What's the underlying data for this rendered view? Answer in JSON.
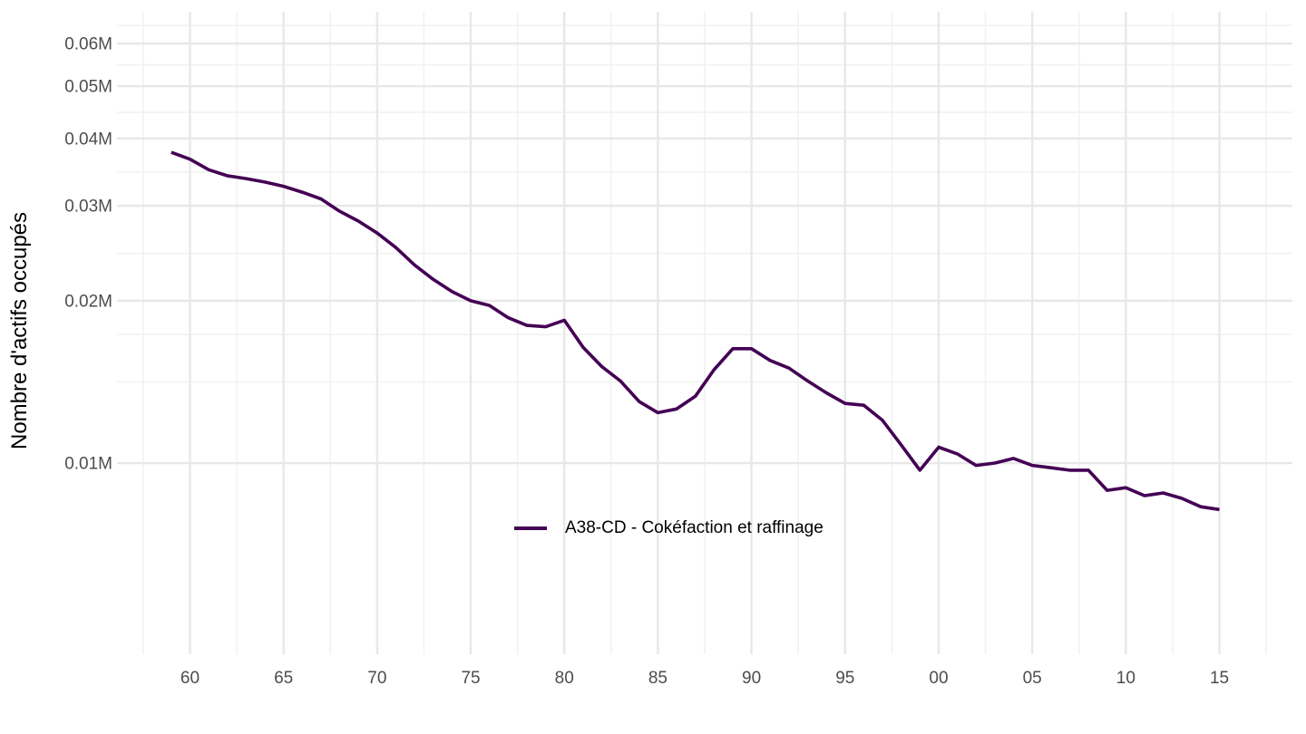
{
  "chart_data": {
    "type": "line",
    "title": "",
    "xlabel": "",
    "ylabel": "Nombre d'actifs occupés",
    "y_scale": "log10",
    "grid": true,
    "legend_position": "inside-bottom-center",
    "x_domain": [
      1956.1,
      2018.9
    ],
    "y_domain": [
      0.00442,
      0.0687
    ],
    "x": [
      1959,
      1960,
      1961,
      1962,
      1963,
      1964,
      1965,
      1966,
      1967,
      1968,
      1969,
      1970,
      1971,
      1972,
      1973,
      1974,
      1975,
      1976,
      1977,
      1978,
      1979,
      1980,
      1981,
      1982,
      1983,
      1984,
      1985,
      1986,
      1987,
      1988,
      1989,
      1990,
      1991,
      1992,
      1993,
      1994,
      1995,
      1996,
      1997,
      1998,
      1999,
      2000,
      2001,
      2002,
      2003,
      2004,
      2005,
      2006,
      2007,
      2008,
      2009,
      2010,
      2011,
      2012,
      2013,
      2014,
      2015
    ],
    "series": [
      {
        "name": "A38-CD - Cokéfaction et raffinage",
        "color": "#440154",
        "values": [
          0.0377,
          0.0366,
          0.035,
          0.0341,
          0.0337,
          0.0332,
          0.0326,
          0.0318,
          0.0309,
          0.0293,
          0.0281,
          0.0267,
          0.0251,
          0.0233,
          0.0219,
          0.0208,
          0.02,
          0.0196,
          0.0186,
          0.018,
          0.0179,
          0.0184,
          0.0164,
          0.0151,
          0.0142,
          0.013,
          0.0124,
          0.0126,
          0.0133,
          0.0149,
          0.0163,
          0.0163,
          0.0155,
          0.015,
          0.0142,
          0.0135,
          0.0129,
          0.0128,
          0.012,
          0.0108,
          0.0097,
          0.0107,
          0.0104,
          0.0099,
          0.01,
          0.0102,
          0.0099,
          0.0098,
          0.0097,
          0.0097,
          0.0089,
          0.009,
          0.0087,
          0.0088,
          0.0086,
          0.0083,
          0.0082
        ]
      }
    ],
    "x_ticks": {
      "major": [
        1960,
        1965,
        1970,
        1975,
        1980,
        1985,
        1990,
        1995,
        2000,
        2005,
        2010,
        2015
      ],
      "labels": [
        "60",
        "65",
        "70",
        "75",
        "80",
        "85",
        "90",
        "95",
        "00",
        "05",
        "10",
        "15"
      ],
      "minor": [
        1957.5,
        1962.5,
        1967.5,
        1972.5,
        1977.5,
        1982.5,
        1987.5,
        1992.5,
        1997.5,
        2002.5,
        2007.5,
        2012.5,
        2017.5
      ]
    },
    "y_ticks": {
      "major": [
        0.01,
        0.02,
        0.03,
        0.04,
        0.05,
        0.06
      ],
      "labels": [
        "0.01M",
        "0.02M",
        "0.03M",
        "0.04M",
        "0.05M",
        "0.06M"
      ],
      "minor": [
        0.01414,
        0.01732,
        0.02449,
        0.03464,
        0.04472,
        0.05477,
        0.06481
      ]
    },
    "colors": {
      "line": "#440154",
      "grid_major": "#E8E8E8",
      "grid_minor": "#F2F2F2",
      "tick_label": "#4D4D4D",
      "axis_title": "#000000",
      "legend_text": "#000000",
      "background": "#FFFFFF"
    }
  }
}
